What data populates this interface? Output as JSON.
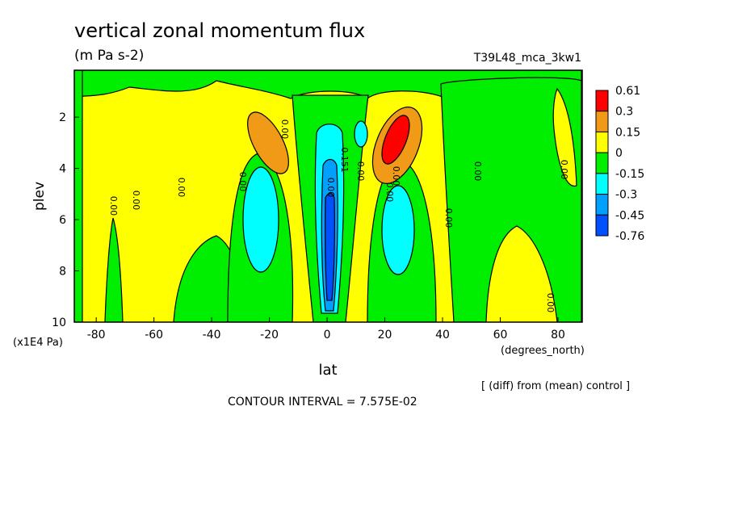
{
  "chart_data": {
    "type": "contour",
    "title": "vertical zonal momentum flux",
    "subtitle": "(m Pa s-2)",
    "dataset": "T39L48_mca_3kw1",
    "xlabel": "lat",
    "xunits": "(degrees_north)",
    "ylabel": "plev",
    "yunits": "(x1E4 Pa)",
    "xlim": [
      -87.6,
      88.4
    ],
    "xticks": [
      -80,
      -60,
      -40,
      -20,
      0,
      20,
      40,
      60,
      80
    ],
    "ylim": [
      10,
      0.17
    ],
    "yticks": [
      2,
      4,
      6,
      8,
      10
    ],
    "levels": [
      0.61,
      0.3,
      0.15,
      0,
      -0.15,
      -0.3,
      -0.45,
      -0.76
    ],
    "colors": [
      "#ff0000",
      "#f09a18",
      "#ffff00",
      "#00ee00",
      "#00ffff",
      "#00a0ff",
      "#0050ff"
    ],
    "contour_labels": [
      "0.00",
      "0.00",
      "0.00",
      "0.00",
      "0.00",
      "0.00",
      "0.151",
      "0.00",
      "0.00",
      "0.00",
      "0.00",
      "0.00",
      "0.00",
      "0.00"
    ],
    "note": "[ (diff) from (mean) control ]",
    "contour_interval": "CONTOUR INTERVAL = 7.575E-02"
  }
}
